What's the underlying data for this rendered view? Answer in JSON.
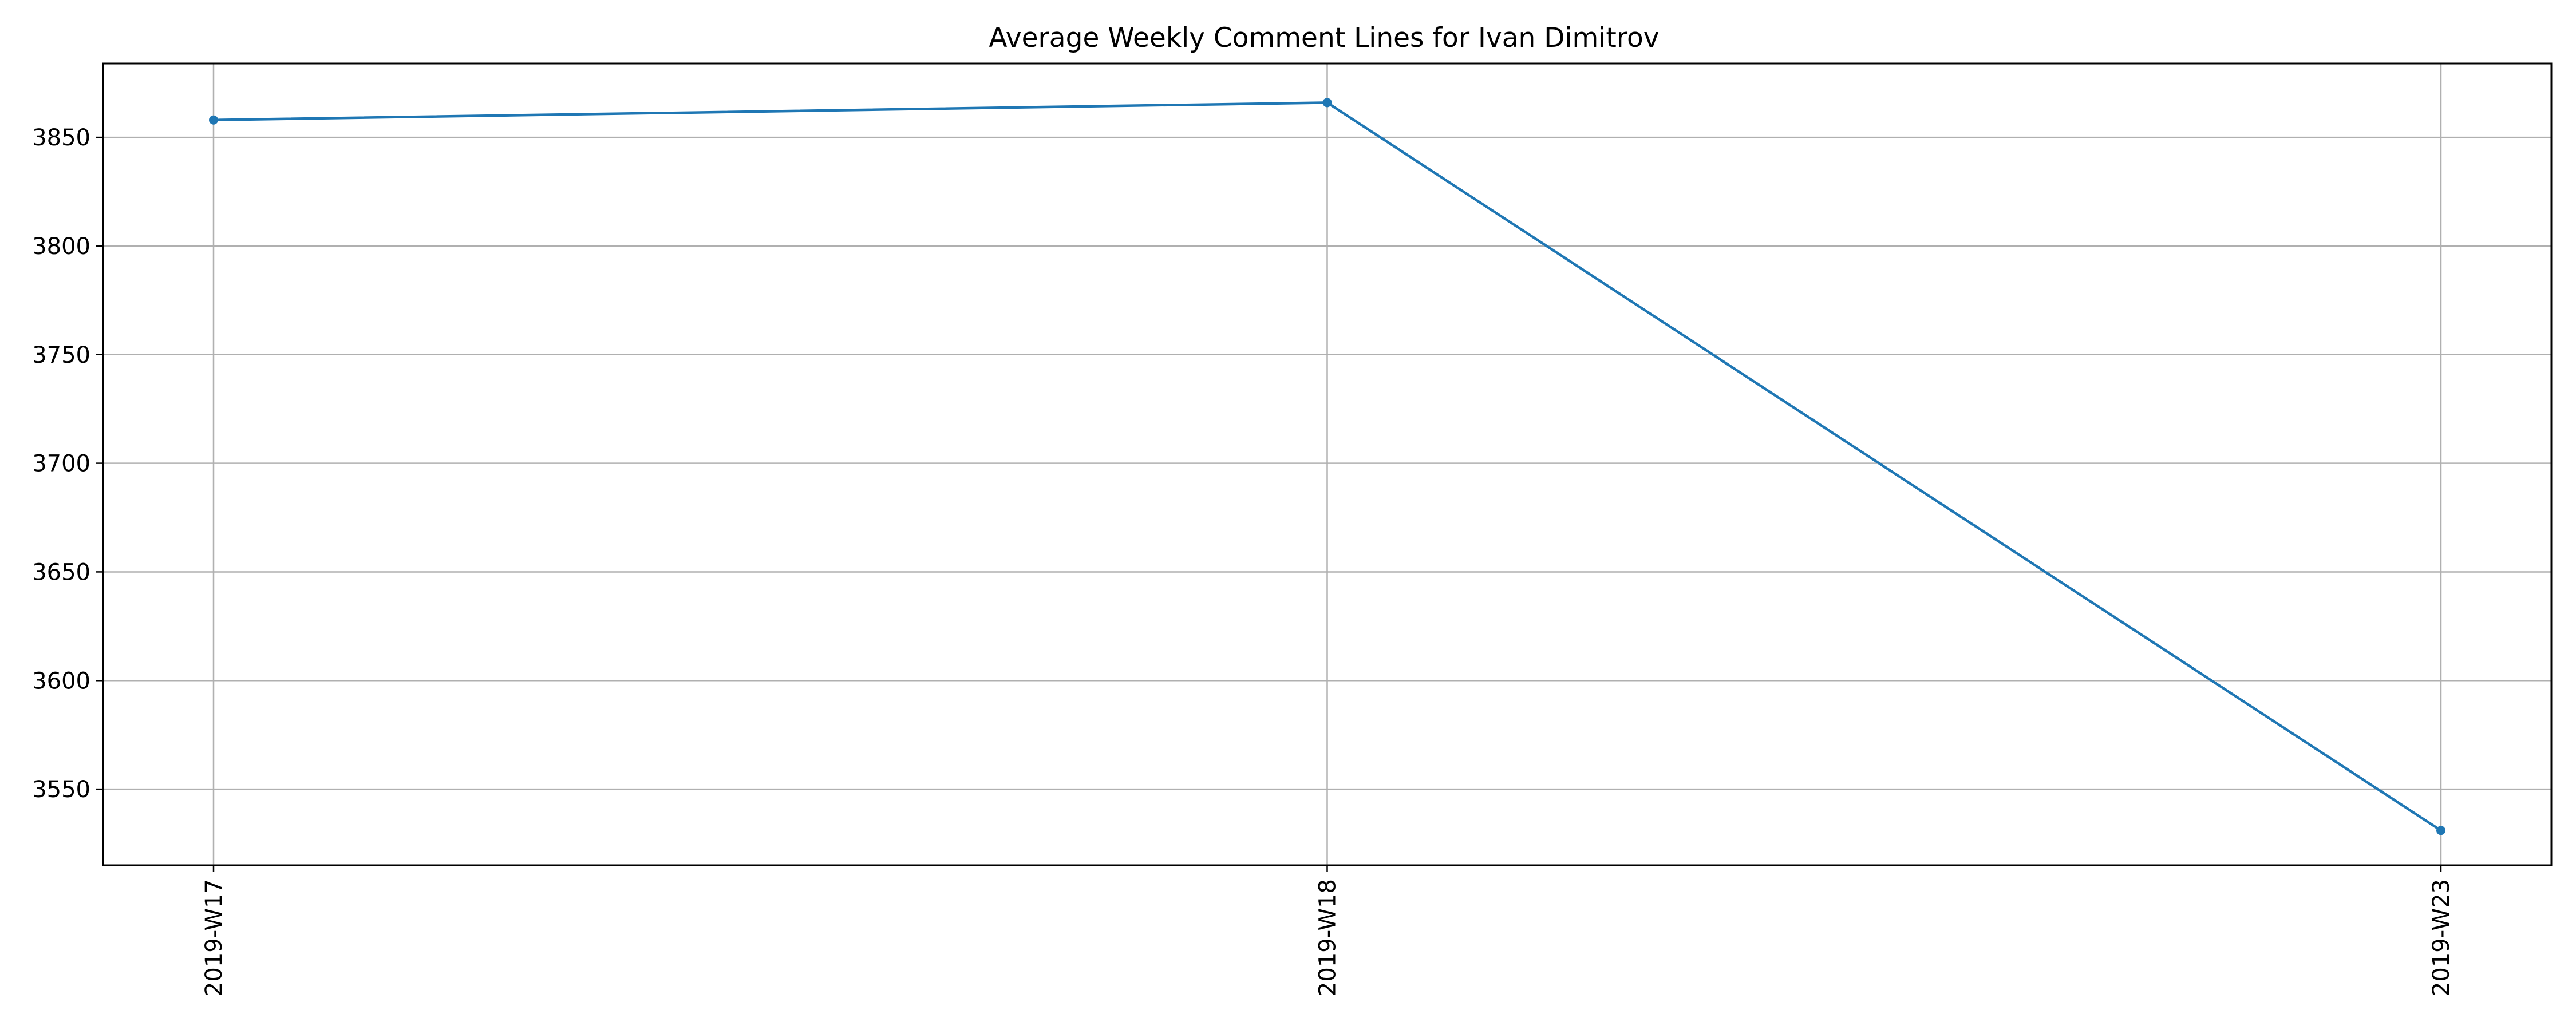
{
  "chart_data": {
    "type": "line",
    "title": "Average Weekly Comment Lines for Ivan Dimitrov",
    "xlabel": "",
    "ylabel": "",
    "categories": [
      "2019-W17",
      "2019-W18",
      "2019-W23"
    ],
    "series": [
      {
        "values": [
          3858,
          3866,
          3531
        ],
        "color": "#1f77b4",
        "marker": "circle"
      }
    ],
    "ylim": [
      3515,
      3884
    ],
    "yticks": [
      3550,
      3600,
      3650,
      3700,
      3750,
      3800,
      3850
    ],
    "grid": true,
    "xtick_rotation": 90,
    "frame_color": "#000000",
    "grid_color": "#b0b0b0"
  }
}
